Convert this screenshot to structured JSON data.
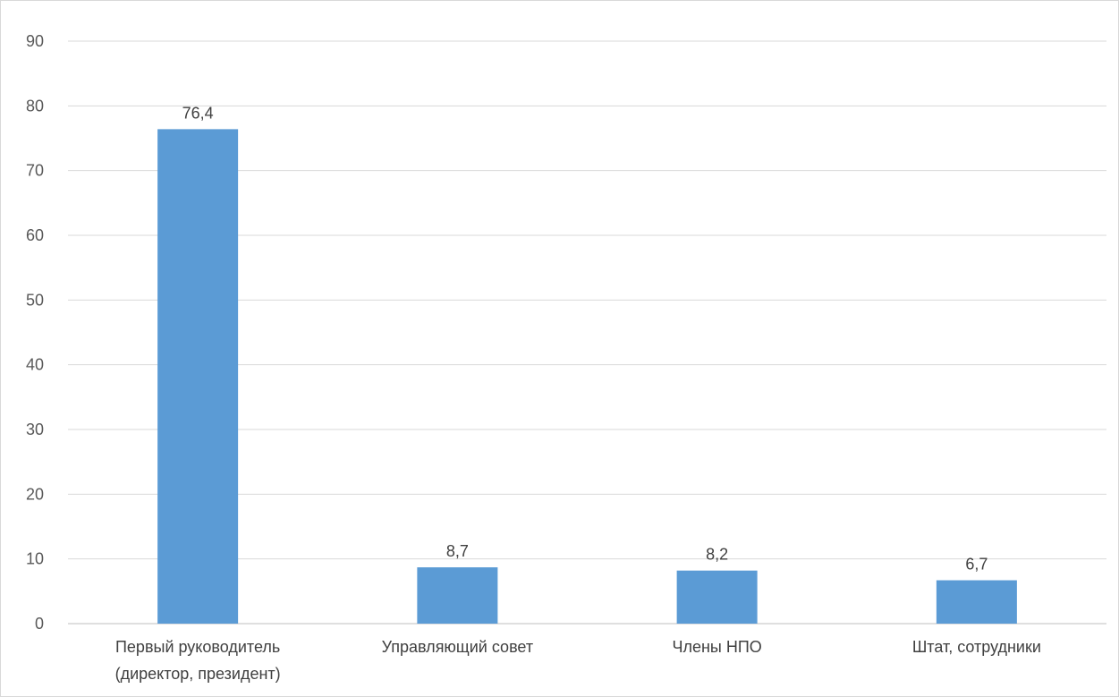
{
  "chart_data": {
    "type": "bar",
    "title": "",
    "xlabel": "",
    "ylabel": "",
    "categories": [
      [
        "Первый руководитель",
        "(директор, президент)"
      ],
      [
        "Управляющий совет"
      ],
      [
        "Члены НПО"
      ],
      [
        "Штат, сотрудники"
      ]
    ],
    "values": [
      76.4,
      8.7,
      8.2,
      6.7
    ],
    "data_labels": [
      "76,4",
      "8,7",
      "8,2",
      "6,7"
    ],
    "ylim": [
      0,
      90
    ],
    "yticks": [
      0,
      10,
      20,
      30,
      40,
      50,
      60,
      70,
      80,
      90
    ],
    "grid": true,
    "legend": "none",
    "colors": {
      "bar": "#5b9bd5",
      "grid": "#d9d9d9",
      "axis": "#bfbfbf"
    }
  }
}
